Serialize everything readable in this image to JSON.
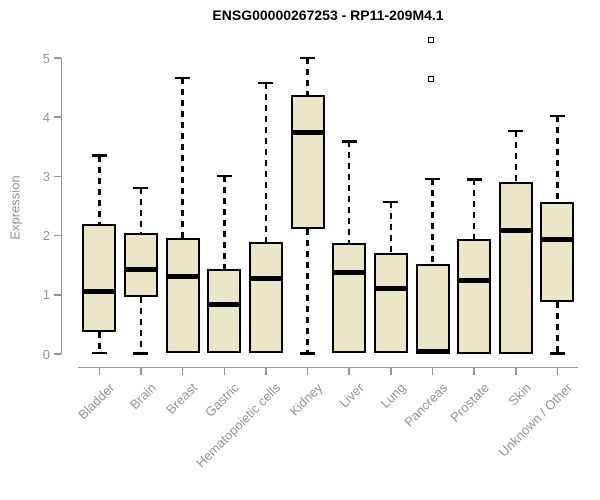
{
  "chart_data": {
    "type": "boxplot",
    "title": "ENSG00000267253 - RP11-209M4.1",
    "xlabel": "",
    "ylabel": "Expression",
    "ylim": [
      0,
      5
    ],
    "yticks": [
      0,
      1,
      2,
      3,
      4,
      5
    ],
    "grid": false,
    "legend": false,
    "categories": [
      "Bladder",
      "Brain",
      "Breast",
      "Gastric",
      "Hematopoietic cells",
      "Kidney",
      "Liver",
      "Lung",
      "Pancreas",
      "Prostate",
      "Skin",
      "Unknown / Other"
    ],
    "boxes": [
      {
        "category": "Bladder",
        "whisker_low": 0.02,
        "q1": 0.37,
        "median": 1.05,
        "q3": 2.2,
        "whisker_high": 3.35,
        "outliers": []
      },
      {
        "category": "Brain",
        "whisker_low": 0.01,
        "q1": 0.97,
        "median": 1.43,
        "q3": 2.04,
        "whisker_high": 2.8,
        "outliers": []
      },
      {
        "category": "Breast",
        "whisker_low": 0.02,
        "q1": 0.02,
        "median": 1.31,
        "q3": 1.96,
        "whisker_high": 4.66,
        "outliers": []
      },
      {
        "category": "Gastric",
        "whisker_low": 0.02,
        "q1": 0.02,
        "median": 0.83,
        "q3": 1.43,
        "whisker_high": 3.01,
        "outliers": []
      },
      {
        "category": "Hematopoietic cells",
        "whisker_low": 0.01,
        "q1": 0.01,
        "median": 1.27,
        "q3": 1.9,
        "whisker_high": 4.58,
        "outliers": []
      },
      {
        "category": "Kidney",
        "whisker_low": 0.01,
        "q1": 2.11,
        "median": 3.74,
        "q3": 4.37,
        "whisker_high": 5.0,
        "outliers": []
      },
      {
        "category": "Liver",
        "whisker_low": 0.01,
        "q1": 0.01,
        "median": 1.37,
        "q3": 1.87,
        "whisker_high": 3.59,
        "outliers": []
      },
      {
        "category": "Lung",
        "whisker_low": 0.01,
        "q1": 0.01,
        "median": 1.11,
        "q3": 1.71,
        "whisker_high": 2.57,
        "outliers": []
      },
      {
        "category": "Pancreas",
        "whisker_low": 0.0,
        "q1": 0.0,
        "median": 0.04,
        "q3": 1.52,
        "whisker_high": 2.96,
        "outliers": [
          4.65,
          5.31
        ]
      },
      {
        "category": "Prostate",
        "whisker_low": 0.0,
        "q1": 0.0,
        "median": 1.25,
        "q3": 1.94,
        "whisker_high": 2.95,
        "outliers": []
      },
      {
        "category": "Skin",
        "whisker_low": 0.0,
        "q1": 0.0,
        "median": 2.08,
        "q3": 2.91,
        "whisker_high": 3.77,
        "outliers": []
      },
      {
        "category": "Unknown / Other",
        "whisker_low": 0.01,
        "q1": 0.87,
        "median": 1.94,
        "q3": 2.56,
        "whisker_high": 4.02,
        "outliers": []
      }
    ],
    "colors": {
      "box_fill": "#ECE6C9",
      "box_border": "#000000",
      "median": "#000000",
      "whisker": "#000000",
      "axis": "#949494",
      "tick_label": "#949494",
      "axis_title": "#949494",
      "title": "#000000",
      "background": "#ffffff"
    }
  }
}
